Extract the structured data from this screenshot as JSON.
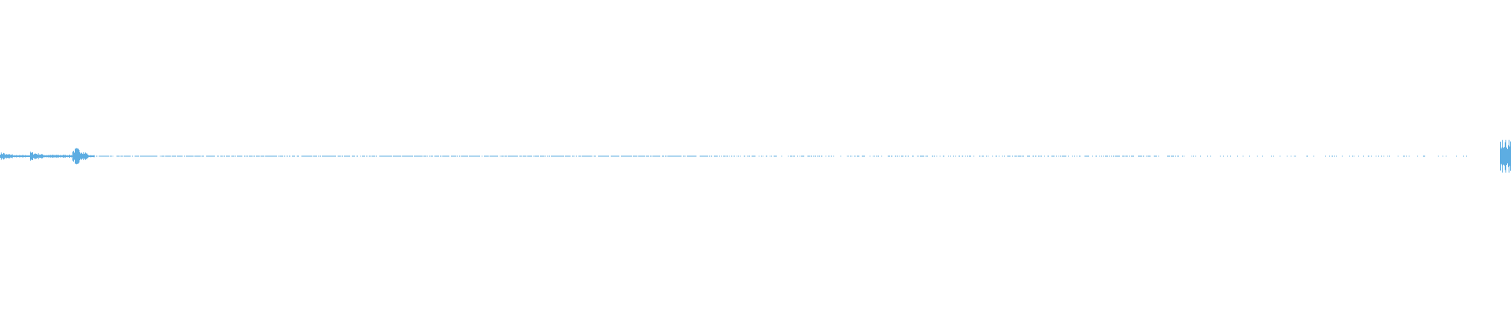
{
  "chart_data": {
    "type": "waveform",
    "title": "",
    "xlabel": "",
    "ylabel": "",
    "grid": false,
    "legend": "none",
    "color": "#5dade2",
    "background": "#ffffff"
  }
}
